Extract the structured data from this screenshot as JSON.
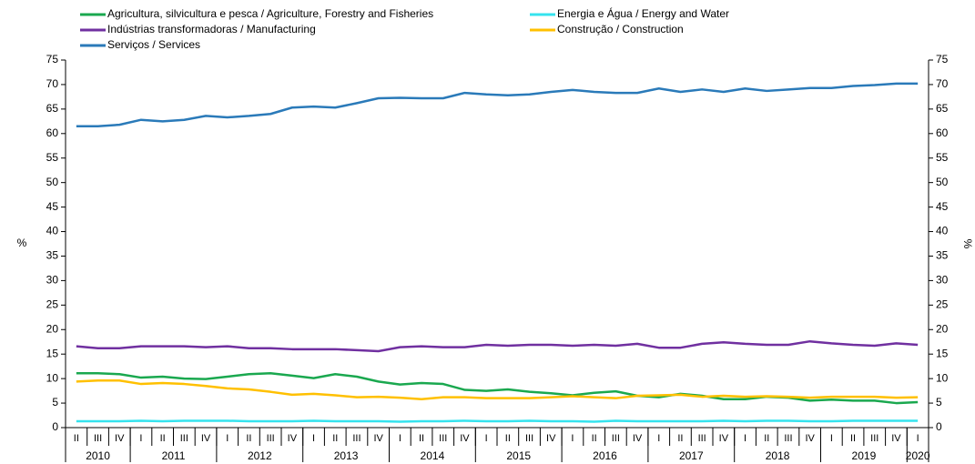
{
  "chart_data": {
    "type": "line",
    "categories": [
      "II",
      "III",
      "IV",
      "I",
      "II",
      "III",
      "IV",
      "I",
      "II",
      "III",
      "IV",
      "I",
      "II",
      "III",
      "IV",
      "I",
      "II",
      "III",
      "IV",
      "I",
      "II",
      "III",
      "IV",
      "I",
      "II",
      "III",
      "IV",
      "I",
      "II",
      "III",
      "IV",
      "I",
      "II",
      "III",
      "IV",
      "I",
      "II",
      "III",
      "IV",
      "I"
    ],
    "years": [
      "2010",
      "2011",
      "2012",
      "2013",
      "2014",
      "2015",
      "2016",
      "2017",
      "2018",
      "2019",
      "2020"
    ],
    "series": [
      {
        "name": "Agricultura, silvicultura e pesca / Agriculture, Forestry and Fisheries",
        "color": "#1aa84f",
        "values": [
          11.1,
          11.1,
          10.9,
          10.2,
          10.4,
          10.0,
          9.9,
          10.4,
          10.9,
          11.1,
          10.6,
          10.1,
          10.9,
          10.4,
          9.4,
          8.8,
          9.1,
          8.9,
          7.7,
          7.5,
          7.8,
          7.3,
          7.0,
          6.6,
          7.1,
          7.4,
          6.5,
          6.2,
          6.9,
          6.5,
          5.8,
          5.8,
          6.3,
          6.1,
          5.5,
          5.7,
          5.5,
          5.5,
          5.0,
          5.2
        ]
      },
      {
        "name": "Energia e Água / Energy and Water",
        "color": "#35e3ee",
        "values": [
          1.3,
          1.3,
          1.3,
          1.4,
          1.3,
          1.4,
          1.4,
          1.4,
          1.3,
          1.3,
          1.3,
          1.4,
          1.3,
          1.3,
          1.3,
          1.2,
          1.3,
          1.3,
          1.4,
          1.3,
          1.3,
          1.4,
          1.3,
          1.3,
          1.2,
          1.4,
          1.3,
          1.3,
          1.3,
          1.3,
          1.4,
          1.3,
          1.4,
          1.4,
          1.3,
          1.3,
          1.4,
          1.4,
          1.4,
          1.4
        ]
      },
      {
        "name": "Indústrias transformadoras / Manufacturing",
        "color": "#7030a0",
        "values": [
          16.6,
          16.2,
          16.2,
          16.6,
          16.6,
          16.6,
          16.4,
          16.6,
          16.2,
          16.2,
          16.0,
          16.0,
          16.0,
          15.8,
          15.6,
          16.4,
          16.6,
          16.4,
          16.4,
          16.9,
          16.7,
          16.9,
          16.9,
          16.7,
          16.9,
          16.7,
          17.1,
          16.3,
          16.3,
          17.1,
          17.4,
          17.1,
          16.9,
          16.9,
          17.6,
          17.2,
          16.9,
          16.7,
          17.2,
          16.9
        ]
      },
      {
        "name": "Construção / Construction",
        "color": "#ffc000",
        "values": [
          9.4,
          9.6,
          9.6,
          8.9,
          9.1,
          8.9,
          8.5,
          8.0,
          7.8,
          7.3,
          6.7,
          6.9,
          6.6,
          6.2,
          6.3,
          6.1,
          5.8,
          6.2,
          6.2,
          6.0,
          6.0,
          6.0,
          6.2,
          6.4,
          6.2,
          6.0,
          6.5,
          6.6,
          6.7,
          6.3,
          6.5,
          6.3,
          6.4,
          6.3,
          6.1,
          6.3,
          6.3,
          6.3,
          6.1,
          6.2
        ]
      },
      {
        "name": "Serviços / Services",
        "color": "#2a7ab9",
        "values": [
          61.5,
          61.5,
          61.8,
          62.8,
          62.5,
          62.8,
          63.6,
          63.3,
          63.6,
          64.0,
          65.3,
          65.5,
          65.3,
          66.2,
          67.2,
          67.3,
          67.2,
          67.2,
          68.3,
          68.0,
          67.8,
          68.0,
          68.5,
          68.9,
          68.5,
          68.3,
          68.3,
          69.2,
          68.5,
          69.0,
          68.5,
          69.2,
          68.7,
          69.0,
          69.3,
          69.3,
          69.7,
          69.9,
          70.2,
          70.2
        ]
      }
    ],
    "y_label": "%",
    "y2_label": "%",
    "ylim": [
      0,
      75
    ],
    "yticks": [
      0,
      5,
      10,
      15,
      20,
      25,
      30,
      35,
      40,
      45,
      50,
      55,
      60,
      65,
      70,
      75
    ],
    "y2lim": [
      0,
      75
    ],
    "y2ticks": [
      0,
      5,
      10,
      15,
      20,
      25,
      30,
      35,
      40,
      45,
      50,
      55,
      60,
      65,
      70,
      75
    ]
  }
}
